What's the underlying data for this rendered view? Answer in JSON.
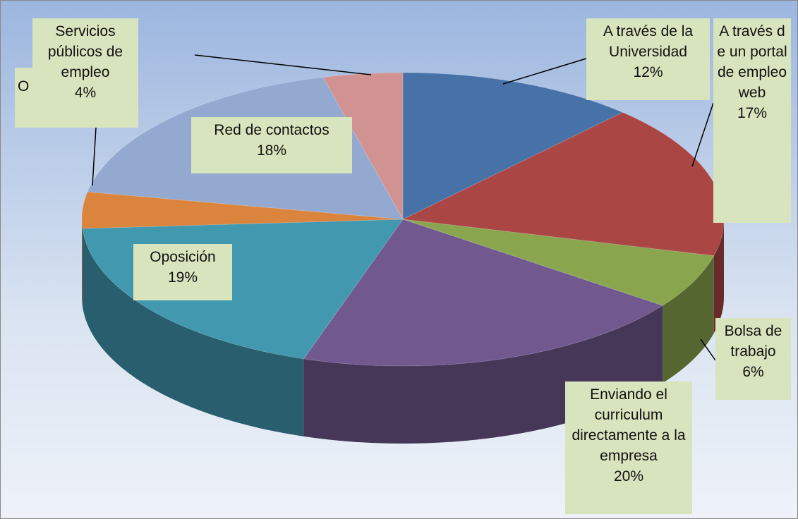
{
  "chart_data": {
    "type": "pie",
    "categories": [
      "A través de la Universidad",
      "A través de un portal de empleo web",
      "Bolsa de trabajo",
      "Enviando el curriculum directamente a la empresa",
      "Oposición",
      "O",
      "Red de contactos",
      "Servicios públicos de empleo"
    ],
    "values": [
      12,
      17,
      6,
      20,
      19,
      4,
      18,
      4
    ],
    "value_labels": [
      "12%",
      "17%",
      "6%",
      "20%",
      "19%",
      null,
      "18%",
      "4%"
    ],
    "colors": [
      "#4672a8",
      "#aa4643",
      "#89a54e",
      "#71588f",
      "#4198af",
      "#db843d",
      "#93a9cf",
      "#d19392"
    ]
  }
}
